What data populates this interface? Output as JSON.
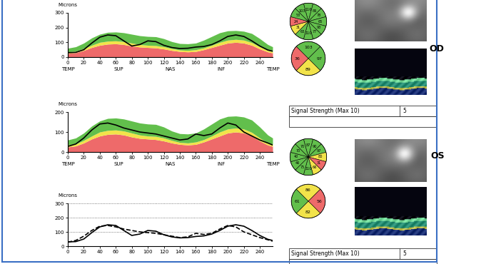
{
  "chart_data": [
    {
      "type": "line",
      "y_label": "Microns",
      "x": [
        0,
        10,
        20,
        30,
        40,
        50,
        60,
        70,
        80,
        90,
        100,
        110,
        120,
        130,
        140,
        150,
        160,
        170,
        180,
        190,
        200,
        210,
        220,
        230,
        240,
        250,
        256
      ],
      "xlim": [
        0,
        256
      ],
      "xticks": [
        0,
        20,
        40,
        60,
        80,
        100,
        120,
        140,
        160,
        180,
        200,
        220,
        240
      ],
      "ylim": [
        0,
        300
      ],
      "yticks": [
        0,
        100,
        200,
        300
      ],
      "x_regions": [
        {
          "value": 0,
          "label": "TEMP"
        },
        {
          "value": 64,
          "label": "SUP"
        },
        {
          "value": 128,
          "label": "NAS"
        },
        {
          "value": 192,
          "label": "INF"
        },
        {
          "value": 256,
          "label": "TEMP"
        }
      ],
      "series": [
        {
          "type": "area",
          "color": "#ee6a6a",
          "values": [
            25,
            30,
            45,
            65,
            80,
            88,
            90,
            85,
            75,
            68,
            65,
            62,
            55,
            45,
            38,
            35,
            38,
            50,
            65,
            80,
            95,
            100,
            95,
            80,
            55,
            35,
            28
          ]
        },
        {
          "type": "area",
          "color": "#f2e34a",
          "values": [
            35,
            40,
            58,
            80,
            100,
            108,
            110,
            105,
            95,
            85,
            80,
            78,
            70,
            58,
            48,
            45,
            50,
            62,
            80,
            100,
            115,
            120,
            115,
            98,
            70,
            45,
            38
          ]
        },
        {
          "type": "area",
          "color": "#62bf4c",
          "values": [
            60,
            70,
            95,
            130,
            155,
            168,
            170,
            165,
            155,
            145,
            140,
            138,
            125,
            105,
            92,
            90,
            95,
            115,
            140,
            165,
            178,
            180,
            175,
            160,
            125,
            85,
            70
          ]
        },
        {
          "type": "line",
          "color": "#000000",
          "line_style": "solid",
          "values": [
            30,
            32,
            50,
            95,
            135,
            150,
            145,
            110,
            75,
            85,
            110,
            105,
            80,
            65,
            58,
            60,
            68,
            72,
            85,
            110,
            140,
            150,
            140,
            110,
            75,
            48,
            40
          ]
        }
      ]
    },
    {
      "type": "line",
      "y_label": "Microns",
      "x": [
        0,
        10,
        20,
        30,
        40,
        50,
        60,
        70,
        80,
        90,
        100,
        110,
        120,
        130,
        140,
        150,
        160,
        170,
        180,
        190,
        200,
        210,
        220,
        230,
        240,
        250,
        256
      ],
      "xlim": [
        0,
        256
      ],
      "xticks": [
        0,
        20,
        40,
        60,
        80,
        100,
        120,
        140,
        160,
        180,
        200,
        220,
        240
      ],
      "ylim": [
        0,
        200
      ],
      "yticks": [
        0,
        100,
        200
      ],
      "x_regions": [
        {
          "value": 0,
          "label": "TEMP"
        },
        {
          "value": 64,
          "label": "SUP"
        },
        {
          "value": 128,
          "label": "NAS"
        },
        {
          "value": 192,
          "label": "INF"
        },
        {
          "value": 256,
          "label": "TEMP"
        }
      ],
      "series": [
        {
          "type": "area",
          "color": "#ee6a6a",
          "values": [
            25,
            30,
            45,
            65,
            80,
            88,
            90,
            85,
            75,
            68,
            65,
            62,
            55,
            45,
            38,
            35,
            38,
            50,
            65,
            80,
            95,
            100,
            95,
            80,
            55,
            35,
            28
          ]
        },
        {
          "type": "area",
          "color": "#f2e34a",
          "values": [
            35,
            40,
            58,
            80,
            100,
            108,
            110,
            105,
            95,
            85,
            80,
            78,
            70,
            58,
            48,
            45,
            50,
            62,
            80,
            100,
            115,
            120,
            115,
            98,
            70,
            45,
            38
          ]
        },
        {
          "type": "area",
          "color": "#62bf4c",
          "values": [
            60,
            70,
            95,
            130,
            155,
            168,
            170,
            165,
            155,
            145,
            140,
            138,
            125,
            105,
            92,
            90,
            95,
            115,
            140,
            165,
            178,
            180,
            175,
            160,
            125,
            85,
            70
          ]
        },
        {
          "type": "line",
          "color": "#000000",
          "line_style": "solid",
          "values": [
            28,
            40,
            70,
            110,
            140,
            145,
            135,
            120,
            110,
            100,
            95,
            90,
            80,
            70,
            60,
            65,
            90,
            82,
            90,
            120,
            145,
            135,
            100,
            80,
            60,
            45,
            35
          ]
        }
      ]
    },
    {
      "type": "line",
      "y_label": "Microns",
      "grid": true,
      "x": [
        0,
        10,
        20,
        30,
        40,
        50,
        60,
        70,
        80,
        90,
        100,
        110,
        120,
        130,
        140,
        150,
        160,
        170,
        180,
        190,
        200,
        210,
        220,
        230,
        240,
        250,
        256
      ],
      "xlim": [
        0,
        256
      ],
      "xticks": [
        0,
        20,
        40,
        60,
        80,
        100,
        120,
        140,
        160,
        180,
        200,
        220,
        240
      ],
      "ylim": [
        0,
        300
      ],
      "yticks": [
        0,
        100,
        200,
        300
      ],
      "series": [
        {
          "color": "#000000",
          "line_style": "solid",
          "values": [
            30,
            32,
            50,
            95,
            135,
            150,
            145,
            110,
            75,
            85,
            110,
            105,
            80,
            65,
            58,
            60,
            68,
            72,
            85,
            110,
            140,
            150,
            140,
            110,
            75,
            48,
            40
          ]
        },
        {
          "color": "#000000",
          "line_style": "dashed",
          "values": [
            28,
            40,
            70,
            110,
            140,
            145,
            135,
            120,
            110,
            100,
            95,
            90,
            80,
            70,
            60,
            65,
            90,
            82,
            90,
            120,
            145,
            135,
            100,
            80,
            60,
            45,
            35
          ]
        }
      ]
    }
  ],
  "eyes": [
    {
      "label": "OD",
      "clock_hours": {
        "values": [
          116,
          86,
          78,
          65,
          93,
          77,
          110,
          63,
          31,
          24,
          53,
          103
        ],
        "colors": [
          "#62bf4c",
          "#62bf4c",
          "#62bf4c",
          "#62bf4c",
          "#62bf4c",
          "#62bf4c",
          "#62bf4c",
          "#62bf4c",
          "#f2e34a",
          "#ee6a6a",
          "#62bf4c",
          "#62bf4c"
        ]
      },
      "quadrants": {
        "values": [
          103,
          97,
          89,
          36
        ],
        "colors": [
          "#62bf4c",
          "#62bf4c",
          "#f2e34a",
          "#ee6a6a"
        ]
      },
      "signal_strength": {
        "label": "Signal Strength (Max 10)",
        "value": 5
      }
    },
    {
      "label": "OS",
      "clock_hours": {
        "values": [
          87,
          90,
          97,
          80,
          31,
          66,
          110,
          75,
          46,
          40,
          70,
          70
        ],
        "colors": [
          "#62bf4c",
          "#62bf4c",
          "#62bf4c",
          "#f2e34a",
          "#ee6a6a",
          "#f2e34a",
          "#62bf4c",
          "#62bf4c",
          "#62bf4c",
          "#62bf4c",
          "#62bf4c",
          "#62bf4c"
        ]
      },
      "quadrants": {
        "values": [
          86,
          56,
          82,
          61
        ],
        "colors": [
          "#f2e34a",
          "#ee6a6a",
          "#f2e34a",
          "#62bf4c"
        ]
      },
      "signal_strength": {
        "label": "Signal Strength (Max 10)",
        "value": 5
      }
    }
  ]
}
